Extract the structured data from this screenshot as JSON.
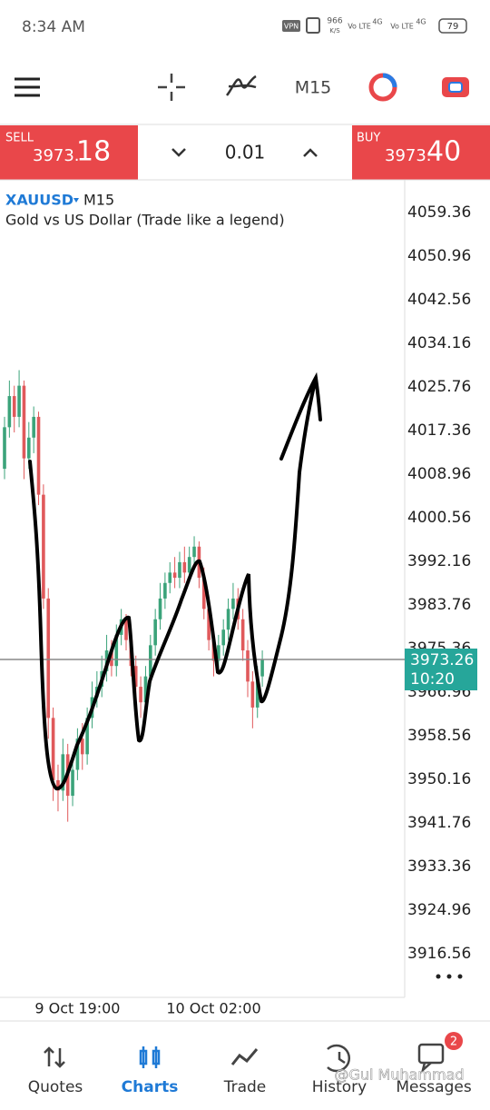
{
  "status_bar": {
    "time": "8:34 AM",
    "vpn": "VPN",
    "speed": "966",
    "speed_unit": "K/S",
    "net1": "Vo LTE",
    "net2": "4G",
    "battery": "79"
  },
  "toolbar": {
    "timeframe": "M15"
  },
  "trade_bar": {
    "sell_label": "SELL",
    "sell_price_main": "3973.",
    "sell_price_pips": "18",
    "lot": "0.01",
    "buy_label": "BUY",
    "buy_price_main": "3973.",
    "buy_price_pips": "40"
  },
  "chart_data": {
    "type": "candlestick",
    "symbol": "XAUUSD",
    "timeframe": "M15",
    "description": "Gold vs US Dollar (Trade like a legend)",
    "categories": [
      null,
      null,
      null,
      null,
      null,
      null,
      null,
      null,
      null,
      null,
      null,
      null,
      null,
      null,
      null,
      "9 Oct 19:00",
      null,
      null,
      null,
      null,
      null,
      null,
      null,
      null,
      null,
      null,
      null,
      null,
      null,
      null,
      null,
      null,
      null,
      null,
      null,
      null,
      null,
      null,
      null,
      null,
      null,
      null,
      null,
      "10 Oct 02:00",
      null,
      null,
      null,
      null,
      null,
      null,
      null,
      null,
      null,
      null
    ],
    "open": [
      4010,
      4018,
      4024,
      4020,
      4026,
      4012,
      4016,
      4020,
      4005,
      3985,
      3962,
      3950,
      3948,
      3955,
      3947,
      3952,
      3958,
      3955,
      3962,
      3966,
      3968,
      3971,
      3975,
      3972,
      3978,
      3981,
      3977,
      3972,
      3968,
      3965,
      3970,
      3976,
      3981,
      3985,
      3988,
      3990,
      3989,
      3992,
      3990,
      3993,
      3995,
      3989,
      3983,
      3977,
      3973,
      3976,
      3979,
      3983,
      3985,
      3981,
      3975,
      3969,
      3964,
      3970
    ],
    "high": [
      4020,
      4027,
      4026,
      4029,
      4027,
      4019,
      4022,
      4021,
      4007,
      3987,
      3964,
      3953,
      3958,
      3957,
      3955,
      3960,
      3961,
      3964,
      3969,
      3971,
      3974,
      3978,
      3977,
      3980,
      3983,
      3982,
      3978,
      3974,
      3970,
      3972,
      3978,
      3983,
      3988,
      3990,
      3992,
      3993,
      3994,
      3995,
      3995,
      3997,
      3996,
      3991,
      3985,
      3979,
      3978,
      3981,
      3985,
      3988,
      3987,
      3983,
      3977,
      3971,
      3972,
      3975
    ],
    "low": [
      4008,
      4016,
      4017,
      4018,
      4008,
      4010,
      4013,
      4003,
      3983,
      3958,
      3946,
      3944,
      3946,
      3942,
      3945,
      3950,
      3952,
      3953,
      3960,
      3964,
      3966,
      3969,
      3970,
      3970,
      3976,
      3975,
      3970,
      3966,
      3962,
      3963,
      3968,
      3974,
      3979,
      3983,
      3986,
      3987,
      3987,
      3988,
      3988,
      3991,
      3987,
      3981,
      3975,
      3970,
      3971,
      3974,
      3977,
      3981,
      3979,
      3973,
      3966,
      3960,
      3962,
      3968
    ],
    "close": [
      4018,
      4024,
      4020,
      4026,
      4012,
      4016,
      4020,
      4005,
      3985,
      3962,
      3950,
      3948,
      3955,
      3947,
      3952,
      3958,
      3955,
      3962,
      3966,
      3968,
      3971,
      3975,
      3972,
      3978,
      3981,
      3977,
      3972,
      3968,
      3965,
      3970,
      3976,
      3981,
      3985,
      3988,
      3990,
      3989,
      3992,
      3990,
      3993,
      3995,
      3989,
      3983,
      3977,
      3973,
      3976,
      3979,
      3983,
      3985,
      3981,
      3975,
      3969,
      3964,
      3970,
      3973.26
    ],
    "up_color": "#3ba37a",
    "down_color": "#e0595b",
    "ylim": [
      3908.16,
      4065.31
    ],
    "yticks": [
      4059.36,
      4050.96,
      4042.56,
      4034.16,
      4025.76,
      4017.36,
      4008.96,
      4000.56,
      3992.16,
      3983.76,
      3975.36,
      3966.96,
      3958.56,
      3950.16,
      3941.76,
      3933.36,
      3924.96,
      3916.56
    ],
    "current_price": 3973.26,
    "countdown": "10:20"
  },
  "nav": [
    {
      "label": "Quotes"
    },
    {
      "label": "Charts"
    },
    {
      "label": "Trade"
    },
    {
      "label": "History"
    },
    {
      "label": "Messages"
    }
  ],
  "badge": "2",
  "watermark": "@Gul Muhammad"
}
